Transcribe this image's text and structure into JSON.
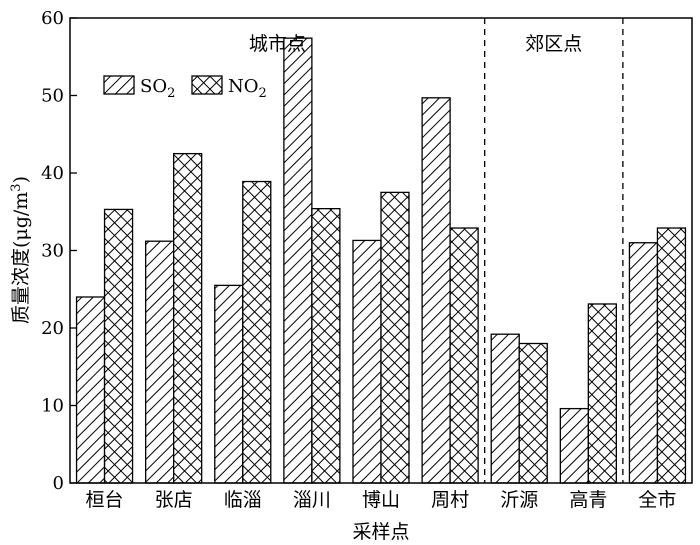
{
  "chart_data": {
    "type": "bar",
    "categories": [
      "桓台",
      "张店",
      "临淄",
      "淄川",
      "博山",
      "周村",
      "沂源",
      "高青",
      "全市"
    ],
    "series": [
      {
        "name": "SO2",
        "label_main": "SO",
        "label_sub": "2",
        "values": [
          24.0,
          31.2,
          25.5,
          57.4,
          31.3,
          49.7,
          19.2,
          9.6,
          31.0
        ]
      },
      {
        "name": "NO2",
        "label_main": "NO",
        "label_sub": "2",
        "values": [
          35.3,
          42.5,
          38.9,
          35.4,
          37.5,
          32.9,
          18.0,
          23.1,
          32.9
        ]
      }
    ],
    "xlabel": "采样点",
    "ylabel_main": "质量浓度(μg/m",
    "ylabel_sup": "3",
    "ylabel_close": ")",
    "ylim": [
      0,
      60
    ],
    "yticks": [
      0,
      10,
      20,
      30,
      40,
      50,
      60
    ],
    "groups": [
      {
        "label": "城市点",
        "from": 0,
        "to": 5
      },
      {
        "label": "郊区点",
        "from": 6,
        "to": 7
      }
    ],
    "legend_placement": "top-left",
    "grid": false
  }
}
